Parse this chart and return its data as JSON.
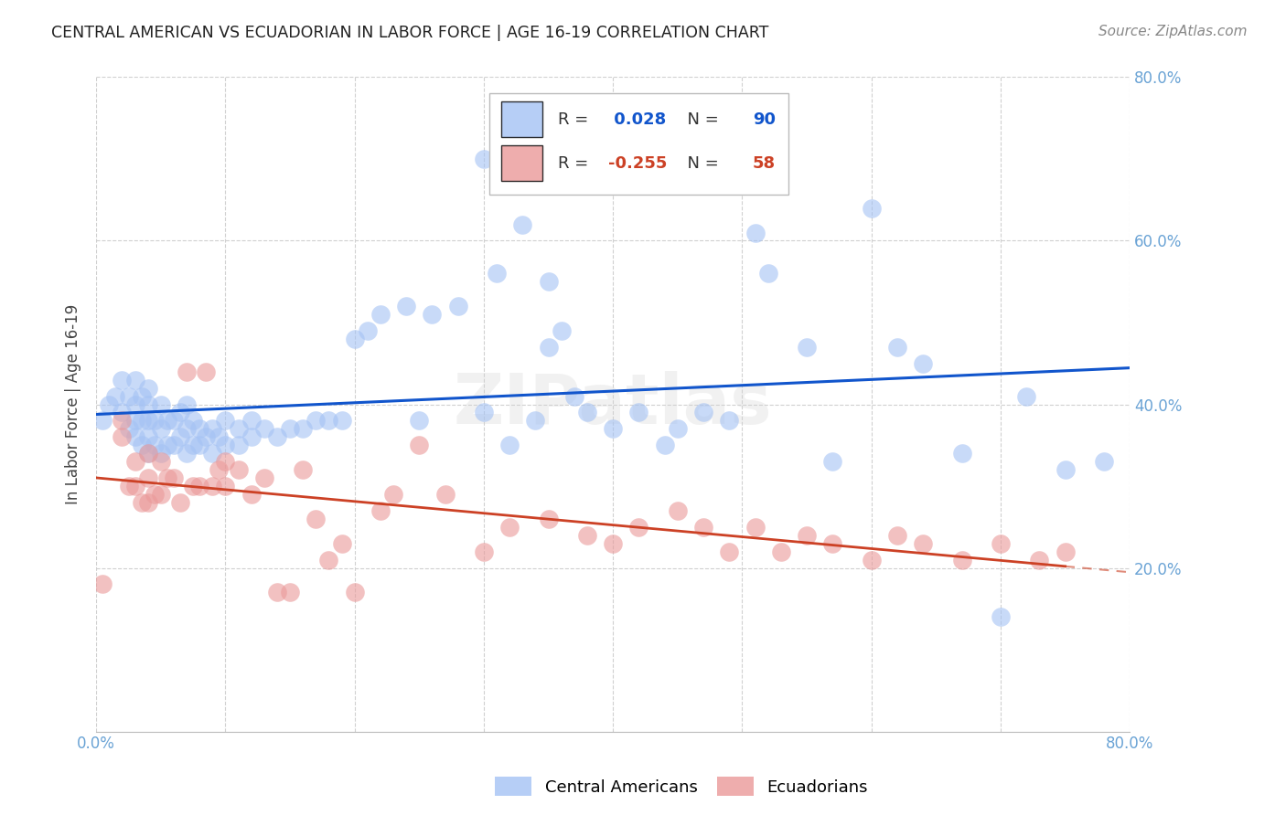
{
  "title": "CENTRAL AMERICAN VS ECUADORIAN IN LABOR FORCE | AGE 16-19 CORRELATION CHART",
  "source": "Source: ZipAtlas.com",
  "ylabel": "In Labor Force | Age 16-19",
  "xlim": [
    0.0,
    0.8
  ],
  "ylim": [
    0.0,
    0.8
  ],
  "legend_blue_r": "0.028",
  "legend_blue_n": "90",
  "legend_pink_r": "-0.255",
  "legend_pink_n": "58",
  "blue_color": "#a4c2f4",
  "pink_color": "#ea9999",
  "blue_line_color": "#1155cc",
  "pink_line_color": "#cc4125",
  "tick_color": "#6aa3d5",
  "watermark": "ZIPatlas",
  "blue_points_x": [
    0.005,
    0.01,
    0.015,
    0.02,
    0.02,
    0.025,
    0.025,
    0.03,
    0.03,
    0.03,
    0.03,
    0.035,
    0.035,
    0.035,
    0.04,
    0.04,
    0.04,
    0.04,
    0.04,
    0.045,
    0.045,
    0.05,
    0.05,
    0.05,
    0.055,
    0.055,
    0.06,
    0.06,
    0.065,
    0.065,
    0.07,
    0.07,
    0.07,
    0.075,
    0.075,
    0.08,
    0.08,
    0.085,
    0.09,
    0.09,
    0.095,
    0.1,
    0.1,
    0.11,
    0.11,
    0.12,
    0.12,
    0.13,
    0.14,
    0.15,
    0.16,
    0.17,
    0.18,
    0.19,
    0.2,
    0.21,
    0.22,
    0.24,
    0.25,
    0.26,
    0.28,
    0.3,
    0.32,
    0.34,
    0.35,
    0.36,
    0.37,
    0.38,
    0.4,
    0.42,
    0.44,
    0.45,
    0.47,
    0.49,
    0.51,
    0.52,
    0.55,
    0.57,
    0.6,
    0.62,
    0.64,
    0.67,
    0.7,
    0.72,
    0.75,
    0.78,
    0.3,
    0.31,
    0.33,
    0.35
  ],
  "blue_points_y": [
    0.38,
    0.4,
    0.41,
    0.39,
    0.43,
    0.37,
    0.41,
    0.36,
    0.38,
    0.4,
    0.43,
    0.35,
    0.38,
    0.41,
    0.34,
    0.36,
    0.38,
    0.4,
    0.42,
    0.35,
    0.38,
    0.34,
    0.37,
    0.4,
    0.35,
    0.38,
    0.35,
    0.38,
    0.36,
    0.39,
    0.34,
    0.37,
    0.4,
    0.35,
    0.38,
    0.35,
    0.37,
    0.36,
    0.34,
    0.37,
    0.36,
    0.35,
    0.38,
    0.35,
    0.37,
    0.36,
    0.38,
    0.37,
    0.36,
    0.37,
    0.37,
    0.38,
    0.38,
    0.38,
    0.48,
    0.49,
    0.51,
    0.52,
    0.38,
    0.51,
    0.52,
    0.39,
    0.35,
    0.38,
    0.47,
    0.49,
    0.41,
    0.39,
    0.37,
    0.39,
    0.35,
    0.37,
    0.39,
    0.38,
    0.61,
    0.56,
    0.47,
    0.33,
    0.64,
    0.47,
    0.45,
    0.34,
    0.14,
    0.41,
    0.32,
    0.33,
    0.7,
    0.56,
    0.62,
    0.55
  ],
  "pink_points_x": [
    0.005,
    0.02,
    0.02,
    0.025,
    0.03,
    0.03,
    0.035,
    0.04,
    0.04,
    0.04,
    0.045,
    0.05,
    0.05,
    0.055,
    0.06,
    0.065,
    0.07,
    0.075,
    0.08,
    0.085,
    0.09,
    0.095,
    0.1,
    0.1,
    0.11,
    0.12,
    0.13,
    0.14,
    0.15,
    0.16,
    0.17,
    0.18,
    0.19,
    0.2,
    0.22,
    0.23,
    0.25,
    0.27,
    0.3,
    0.32,
    0.35,
    0.38,
    0.4,
    0.42,
    0.45,
    0.47,
    0.49,
    0.51,
    0.53,
    0.55,
    0.57,
    0.6,
    0.62,
    0.64,
    0.67,
    0.7,
    0.73,
    0.75
  ],
  "pink_points_y": [
    0.18,
    0.36,
    0.38,
    0.3,
    0.3,
    0.33,
    0.28,
    0.28,
    0.31,
    0.34,
    0.29,
    0.29,
    0.33,
    0.31,
    0.31,
    0.28,
    0.44,
    0.3,
    0.3,
    0.44,
    0.3,
    0.32,
    0.3,
    0.33,
    0.32,
    0.29,
    0.31,
    0.17,
    0.17,
    0.32,
    0.26,
    0.21,
    0.23,
    0.17,
    0.27,
    0.29,
    0.35,
    0.29,
    0.22,
    0.25,
    0.26,
    0.24,
    0.23,
    0.25,
    0.27,
    0.25,
    0.22,
    0.25,
    0.22,
    0.24,
    0.23,
    0.21,
    0.24,
    0.23,
    0.21,
    0.23,
    0.21,
    0.22
  ],
  "background_color": "#ffffff",
  "grid_color": "#d0d0d0"
}
